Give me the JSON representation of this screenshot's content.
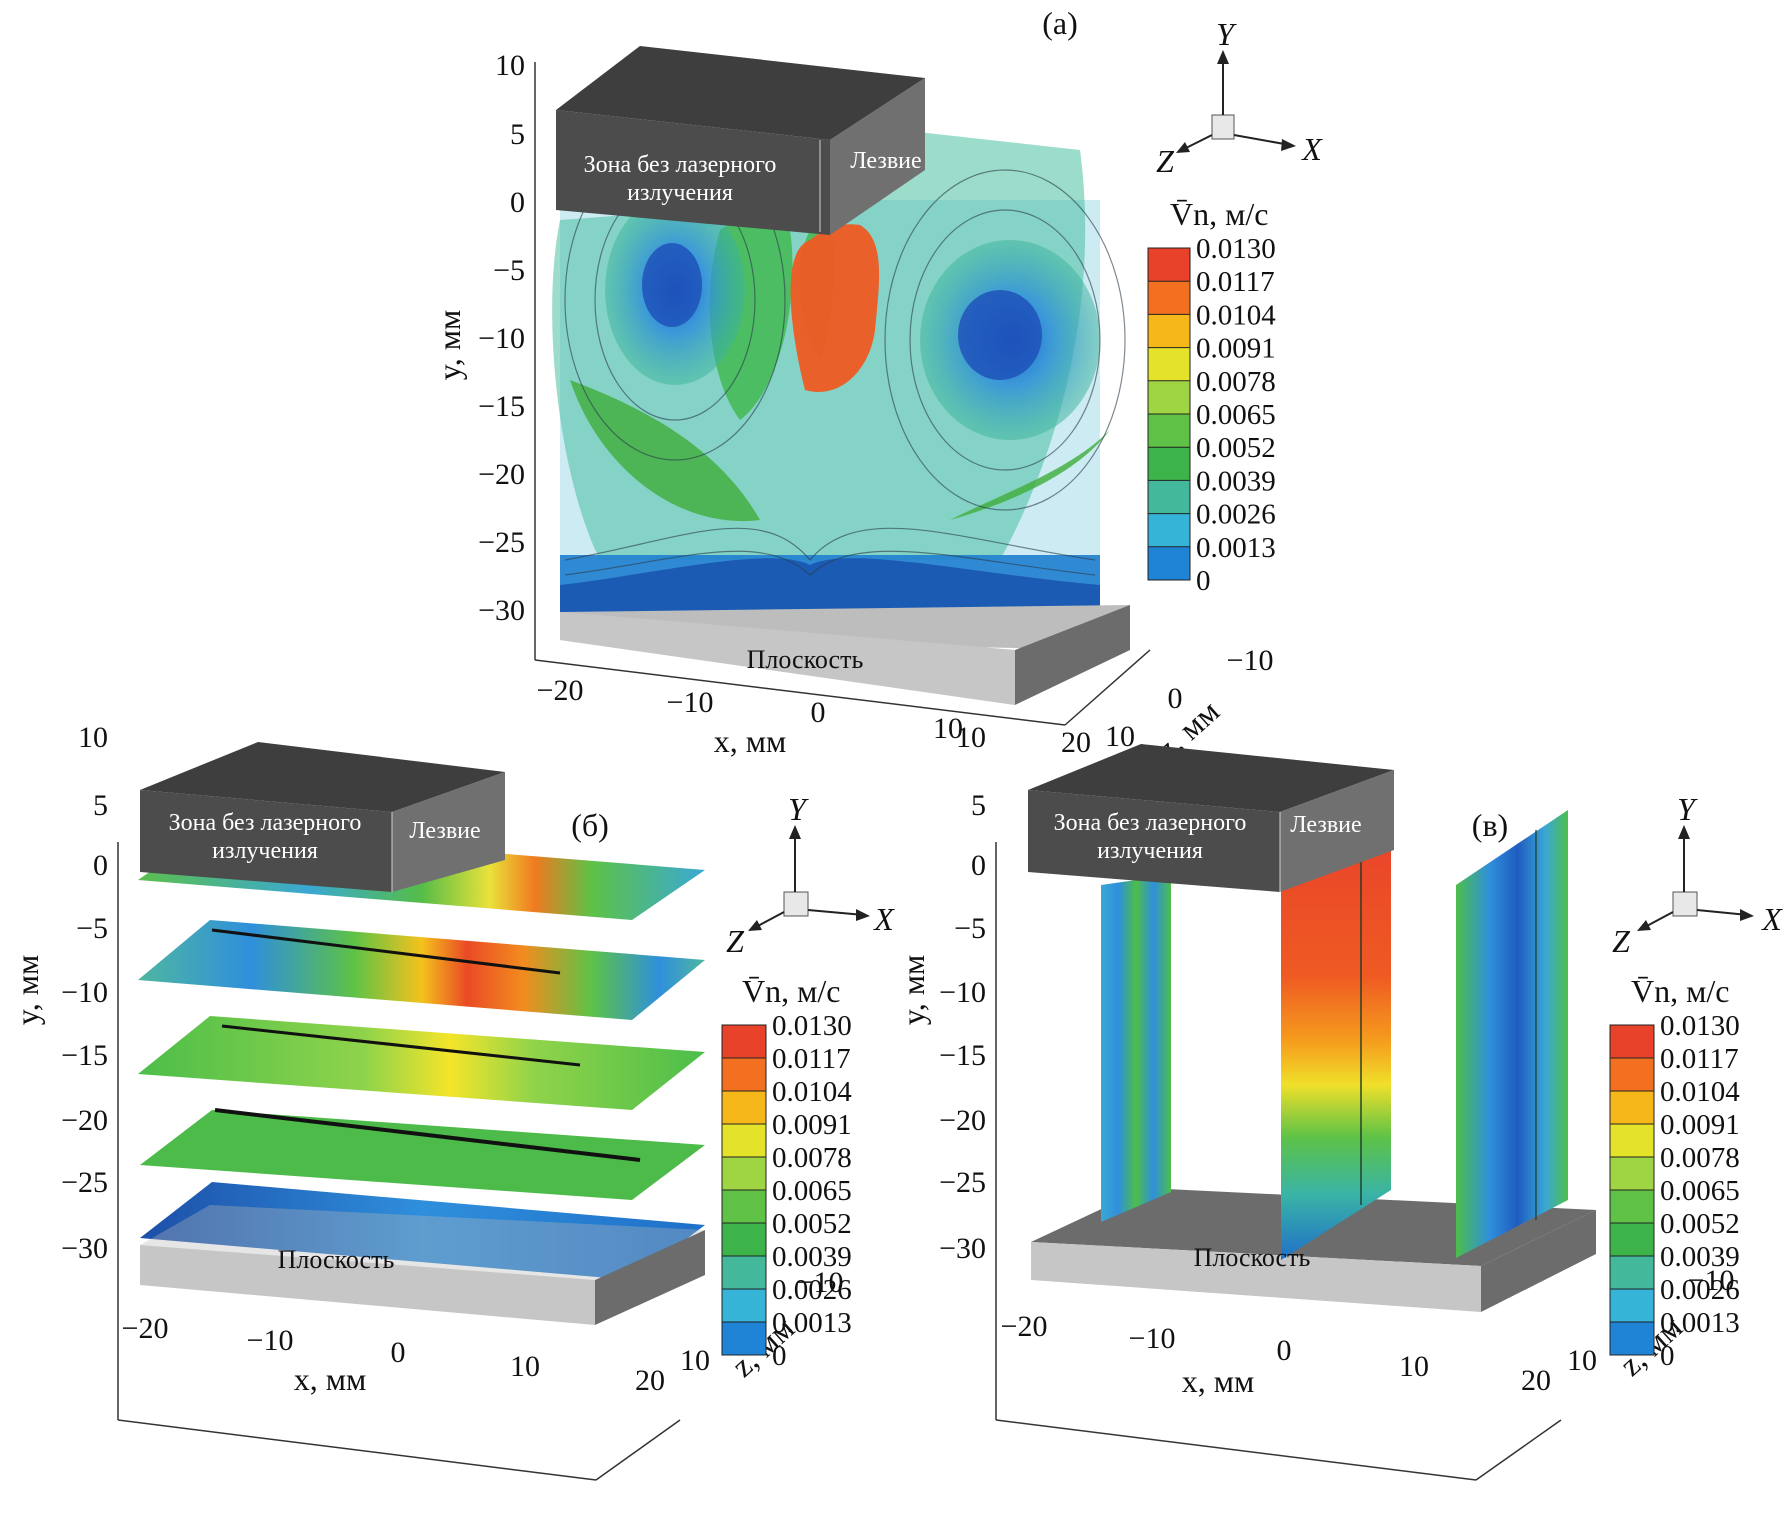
{
  "panels": {
    "a": {
      "label": "(a)",
      "zone_text_1": "Зона без лазерного",
      "zone_text_2": "излучения",
      "blade_text": "Лезвие",
      "floor_text": "Плоскость"
    },
    "b": {
      "label": "(б)",
      "zone_text_1": "Зона без лазерного",
      "zone_text_2": "излучения",
      "blade_text": "Лезвие",
      "floor_text": "Плоскость"
    },
    "c": {
      "label": "(в)",
      "zone_text_1": "Зона без лазерного",
      "zone_text_2": "излучения",
      "blade_text": "Лезвие",
      "floor_text": "Плоскость"
    }
  },
  "axes": {
    "y_label": "y, мм",
    "x_label": "x, мм",
    "z_label": "z, мм",
    "y_ticks": [
      "10",
      "5",
      "0",
      "−5",
      "−10",
      "−15",
      "−20",
      "−25",
      "−30"
    ],
    "x_ticks": [
      "−20",
      "−10",
      "0",
      "10",
      "20"
    ],
    "z_ticks": [
      "−10",
      "0",
      "10"
    ]
  },
  "triad": {
    "y": "Y",
    "x": "X",
    "z": "Z"
  },
  "colorbar": {
    "title": "V̄n, м/с",
    "ticks": [
      "0.0130",
      "0.0117",
      "0.0104",
      "0.0091",
      "0.0078",
      "0.0065",
      "0.0052",
      "0.0039",
      "0.0026",
      "0.0013",
      "0"
    ],
    "colors": [
      "#e8422a",
      "#f2701f",
      "#f5b71a",
      "#e4e32a",
      "#9fd443",
      "#5fc247",
      "#3cb449",
      "#44b89a",
      "#36b4d8",
      "#1f84d6",
      "#1c4fa8"
    ]
  }
}
